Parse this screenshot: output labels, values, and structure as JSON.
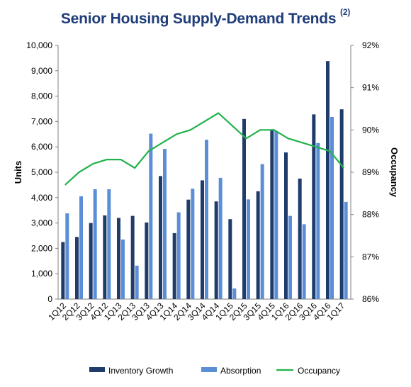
{
  "chart_title": "Senior Housing Supply-Demand Trends",
  "chart_title_note": "(2)",
  "colors": {
    "inventory": "#1f3c6b",
    "absorption": "#5b8ed6",
    "occupancy": "#22b24c",
    "title": "#1f3d7a"
  },
  "chart_data": {
    "type": "bar",
    "title": "Senior Housing Supply-Demand Trends (2)",
    "categories": [
      "1Q12",
      "2Q12",
      "3Q12",
      "4Q12",
      "1Q13",
      "2Q13",
      "3Q13",
      "4Q13",
      "1Q14",
      "2Q14",
      "3Q14",
      "4Q14",
      "1Q15",
      "2Q15",
      "3Q15",
      "4Q15",
      "1Q16",
      "2Q16",
      "3Q16",
      "4Q16",
      "1Q17"
    ],
    "series": [
      {
        "name": "Inventory Growth",
        "type": "bar",
        "axis": "left",
        "values": [
          2250,
          2450,
          3000,
          3300,
          3200,
          3280,
          3020,
          4850,
          2600,
          3920,
          4680,
          3850,
          3150,
          7100,
          4250,
          6650,
          5780,
          4750,
          7280,
          9380,
          7480
        ]
      },
      {
        "name": "Absorption",
        "type": "bar",
        "axis": "left",
        "values": [
          3380,
          4050,
          4330,
          4330,
          2350,
          1320,
          6520,
          5920,
          3420,
          4350,
          6280,
          4780,
          420,
          3930,
          5320,
          6620,
          3280,
          2950,
          6150,
          7180,
          3830
        ]
      },
      {
        "name": "Occupancy",
        "type": "line",
        "axis": "right",
        "values": [
          88.7,
          89.0,
          89.2,
          89.3,
          89.3,
          89.1,
          89.5,
          89.7,
          89.9,
          90.0,
          90.2,
          90.4,
          90.1,
          89.8,
          90.0,
          90.0,
          89.8,
          89.7,
          89.6,
          89.5,
          89.1
        ]
      }
    ],
    "ylabel": "Units",
    "y2label": "Occupancy",
    "ylim": [
      0,
      10000
    ],
    "y2lim": [
      86,
      92
    ],
    "yticks": [
      "0",
      "1,000",
      "2,000",
      "3,000",
      "4,000",
      "5,000",
      "6,000",
      "7,000",
      "8,000",
      "9,000",
      "10,000"
    ],
    "y2ticks": [
      "86%",
      "87%",
      "88%",
      "89%",
      "90%",
      "91%",
      "92%"
    ],
    "legend": [
      "Inventory Growth",
      "Absorption",
      "Occupancy"
    ],
    "legend_position": "bottom",
    "grid": false
  }
}
